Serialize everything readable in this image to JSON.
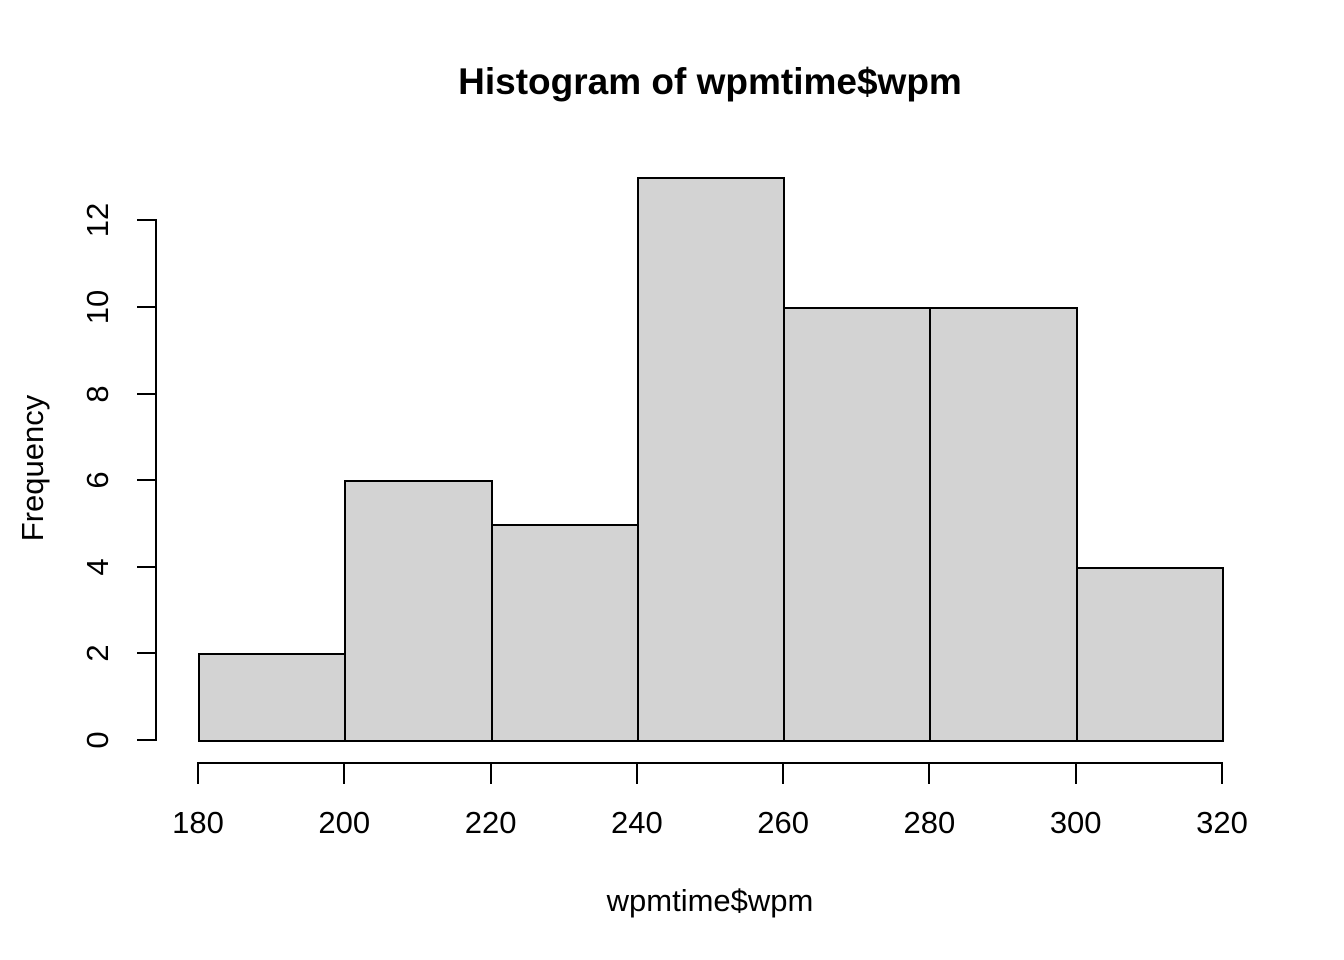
{
  "figure": {
    "title": "Histogram of wpmtime$wpm",
    "x_axis_label": "wpmtime$wpm",
    "y_axis_label": "Frequency"
  },
  "colors": {
    "background": "#FFFFFF",
    "bar_fill": "#D3D3D3",
    "bar_border": "#000000",
    "axis": "#000000",
    "text": "#000000"
  },
  "chart_data": {
    "type": "bar",
    "subtype": "histogram",
    "title": "Histogram of wpmtime$wpm",
    "xlabel": "wpmtime$wpm",
    "ylabel": "Frequency",
    "bin_edges": [
      180,
      200,
      220,
      240,
      260,
      280,
      300,
      320
    ],
    "counts": [
      2,
      6,
      5,
      13,
      10,
      10,
      4
    ],
    "x_ticks": [
      180,
      200,
      220,
      240,
      260,
      280,
      300,
      320
    ],
    "y_ticks": [
      0,
      2,
      4,
      6,
      8,
      10,
      12
    ],
    "xlim": [
      180,
      320
    ],
    "ylim": [
      0,
      13
    ],
    "grid": false,
    "legend": false,
    "y_tick_labels_rotated": true
  }
}
